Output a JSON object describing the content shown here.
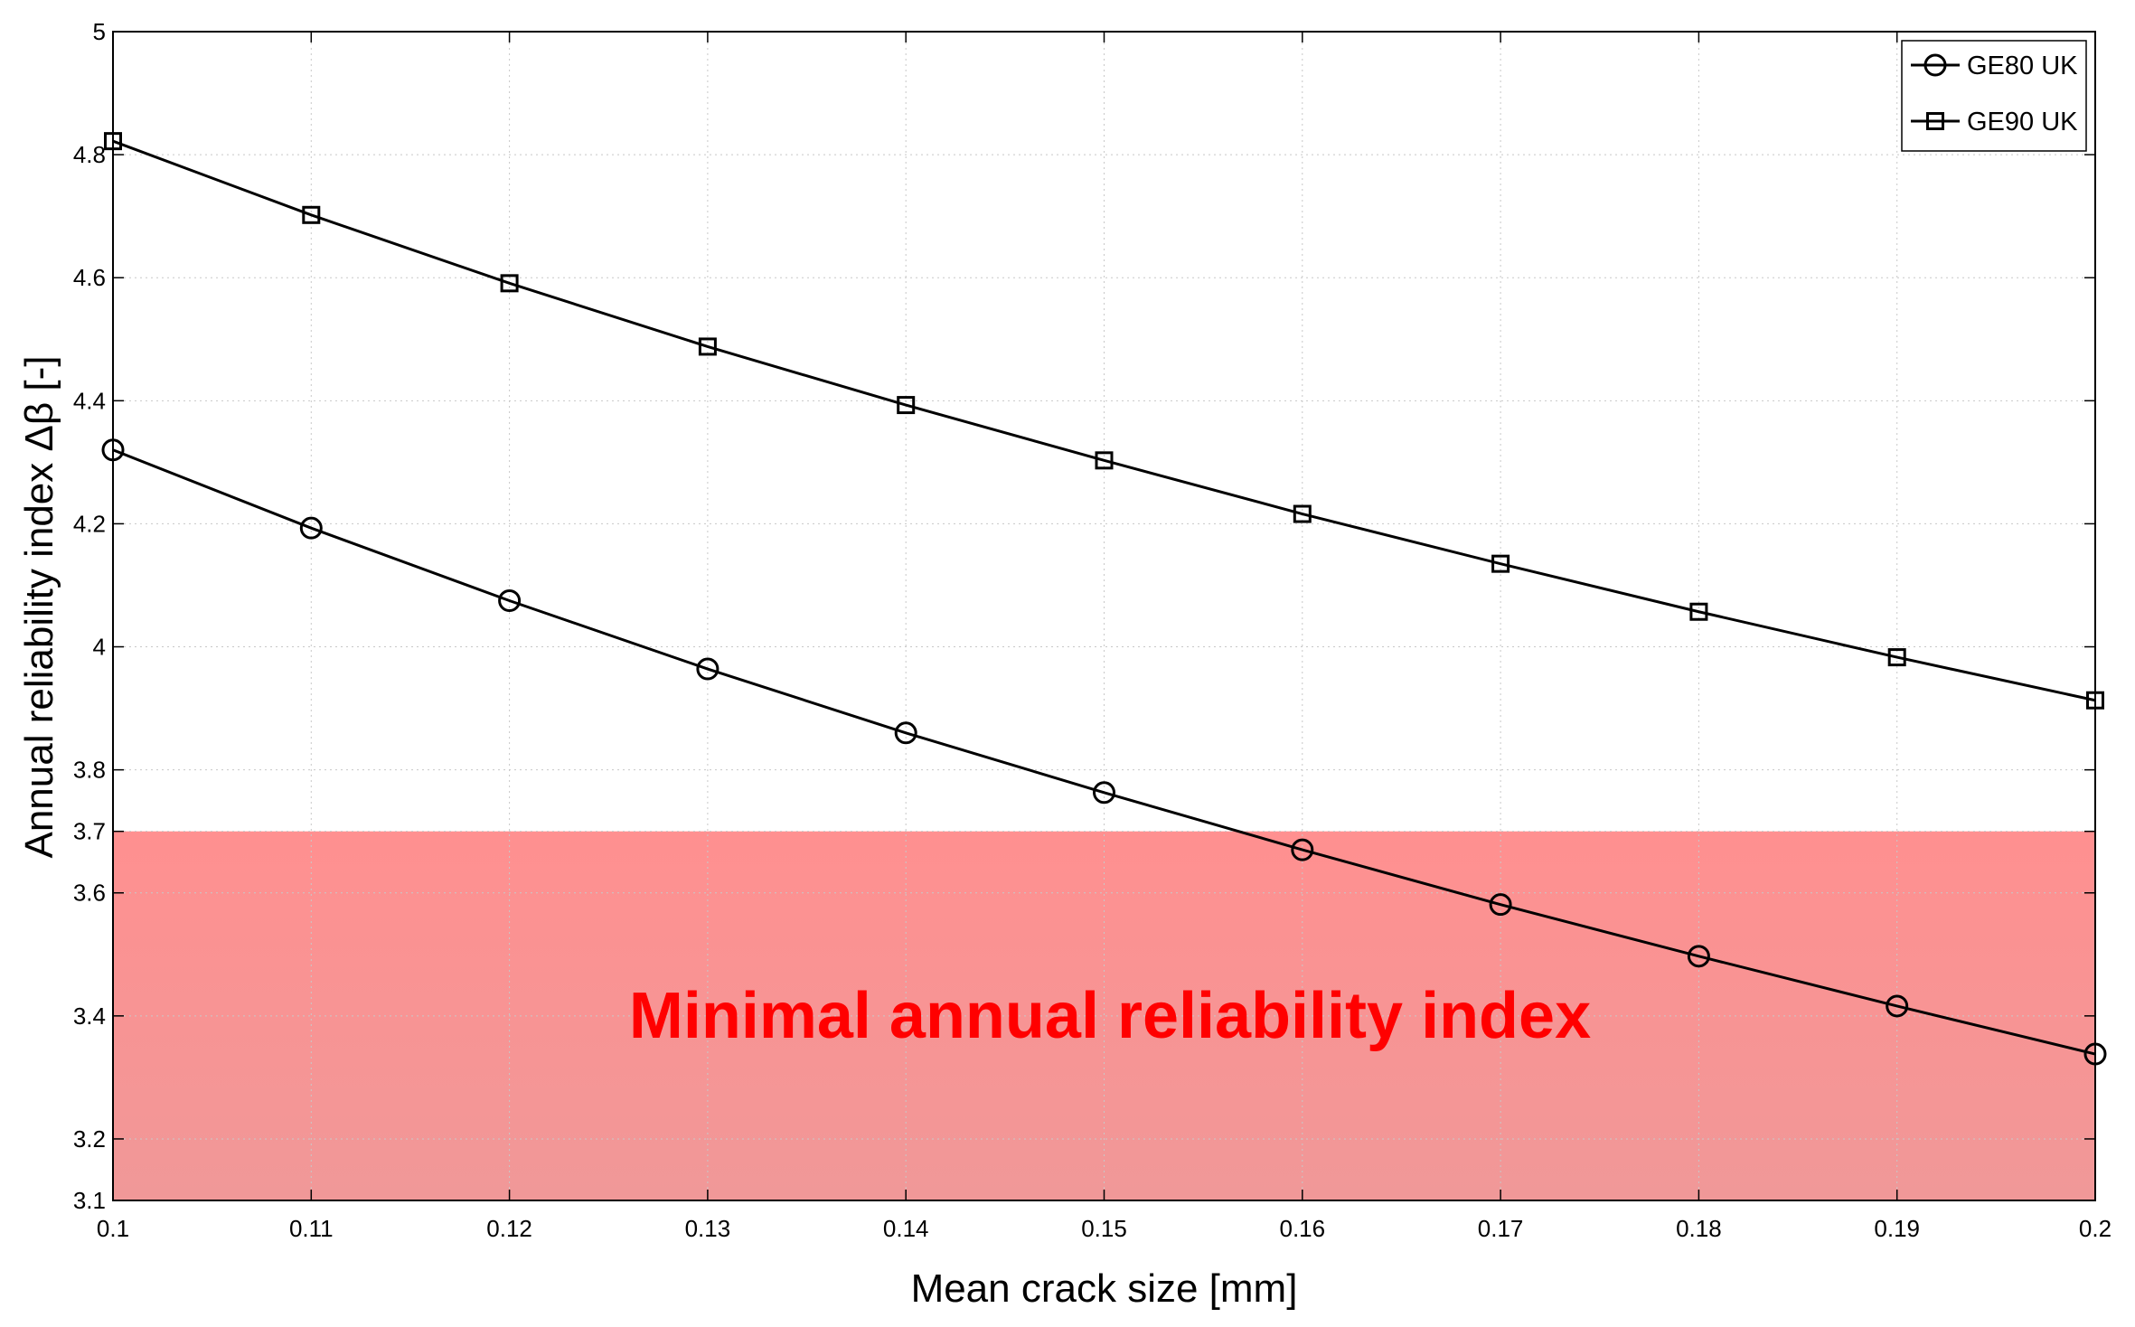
{
  "chart_data": {
    "type": "line",
    "title": "",
    "xlabel": "Mean crack size [mm]",
    "ylabel": "Annual reliability index Δβ [-]",
    "xlim": [
      0.1,
      0.2
    ],
    "ylim": [
      3.1,
      5
    ],
    "grid": true,
    "x": [
      0.1,
      0.11,
      0.12,
      0.13,
      0.14,
      0.15,
      0.16,
      0.17,
      0.18,
      0.19,
      0.2
    ],
    "x_ticks": [
      "0.1",
      "0.11",
      "0.12",
      "0.13",
      "0.14",
      "0.15",
      "0.16",
      "0.17",
      "0.18",
      "0.19",
      "0.2"
    ],
    "y_ticks": [
      "3.1",
      "3.2",
      "3.4",
      "3.6",
      "3.7",
      "3.8",
      "4",
      "4.2",
      "4.4",
      "4.6",
      "4.8",
      "5"
    ],
    "series": [
      {
        "name": "GE80 UK",
        "marker": "circle",
        "values": [
          4.32,
          4.193,
          4.075,
          3.964,
          3.86,
          3.763,
          3.67,
          3.581,
          3.497,
          3.416,
          3.338
        ]
      },
      {
        "name": "GE90 UK",
        "marker": "square",
        "values": [
          4.822,
          4.702,
          4.591,
          4.488,
          4.393,
          4.303,
          4.216,
          4.135,
          4.057,
          3.983,
          3.913
        ]
      }
    ],
    "legend": {
      "position": "top-right"
    },
    "region": {
      "from": 3.1,
      "to": 3.7,
      "label": "Minimal annual reliability index",
      "color": "#f28a8a"
    }
  }
}
